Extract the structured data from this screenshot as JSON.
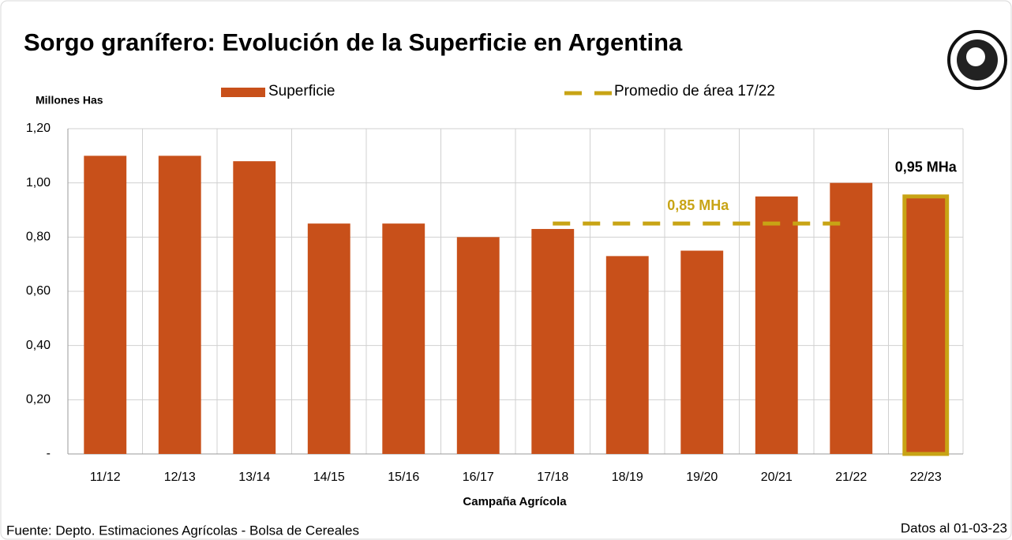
{
  "chart_data": {
    "type": "bar",
    "title": "Sorgo granífero: Evolución de la Superficie en Argentina",
    "y_axis_label": "Millones Has",
    "x_axis_label": "Campaña Agrícola",
    "categories": [
      "11/12",
      "12/13",
      "13/14",
      "14/15",
      "15/16",
      "16/17",
      "17/18",
      "18/19",
      "19/20",
      "20/21",
      "21/22",
      "22/23"
    ],
    "series": [
      {
        "name": "Superficie",
        "type": "bar",
        "color": "#c8501a",
        "values": [
          1.1,
          1.1,
          1.08,
          0.85,
          0.85,
          0.8,
          0.83,
          0.73,
          0.75,
          0.95,
          1.0,
          0.95
        ]
      },
      {
        "name": "Promedio de área 17/22",
        "type": "line",
        "style": "dashed",
        "color": "#c8a415",
        "values": [
          null,
          null,
          null,
          null,
          null,
          null,
          0.85,
          0.85,
          0.85,
          0.85,
          0.85,
          null
        ]
      }
    ],
    "highlight": {
      "index": 11,
      "edgecolor": "#c8a415"
    },
    "annotations": [
      "0,85 MHa",
      "0,95 MHa"
    ],
    "ylim": [
      0,
      1.2
    ],
    "yticks": [
      {
        "value": 0,
        "label": "-"
      },
      {
        "value": 0.2,
        "label": "0,20"
      },
      {
        "value": 0.4,
        "label": "0,40"
      },
      {
        "value": 0.6,
        "label": "0,60"
      },
      {
        "value": 0.8,
        "label": "0,80"
      },
      {
        "value": 1.0,
        "label": "1,00"
      },
      {
        "value": 1.2,
        "label": "1,20"
      }
    ],
    "grid": true,
    "legend": "top",
    "source": "Fuente: Depto. Estimaciones Agrícolas - Bolsa de Cereales",
    "date_note": "Datos al 01-03-23"
  }
}
